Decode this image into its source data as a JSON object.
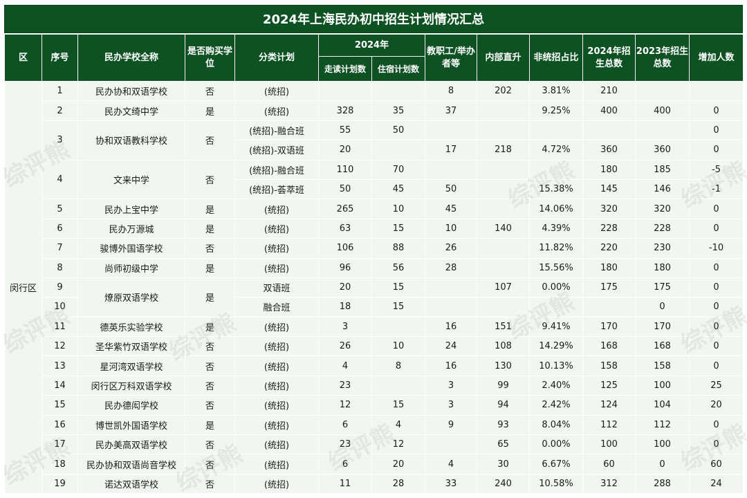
{
  "title": "2024年上海民办初中招生计划情况汇总",
  "headers": {
    "district": "区",
    "seq": "序号",
    "school": "民办学校全称",
    "buy_seat": "是否购买学位",
    "category": "分类计划",
    "year2024": "2024年",
    "day_plan": "走读计划数",
    "board_plan": "住宿计划数",
    "staff": "教职工/举办者等",
    "internal": "内部直升",
    "non_unified": "非统招占比",
    "total2024": "2024年招生总数",
    "total2023": "2023年招生总数",
    "increase": "增加人数"
  },
  "district": "闵行区",
  "watermark": "综评熊",
  "rows": [
    {
      "seq": "1",
      "school": "民办协和双语学校",
      "buy": "否",
      "cat": "(统招)",
      "day": "",
      "board": "",
      "staff": "8",
      "internal": "202",
      "ratio": "3.81%",
      "t2024": "210",
      "t2023": "",
      "inc": ""
    },
    {
      "seq": "2",
      "school": "民办文绮中学",
      "buy": "是",
      "cat": "(统招)",
      "day": "328",
      "board": "35",
      "staff": "37",
      "internal": "",
      "ratio": "9.25%",
      "t2024": "400",
      "t2023": "400",
      "inc": "0"
    },
    {
      "seq": "3",
      "school": "协和双语教科学校",
      "buy": "否",
      "cat": "(统招)-融合班",
      "day": "55",
      "board": "50",
      "staff": "",
      "internal": "",
      "ratio": "",
      "t2024": "",
      "t2023": "",
      "inc": "0"
    },
    {
      "seq": "",
      "school": "",
      "buy": "",
      "cat": "(统招)-双语班",
      "day": "20",
      "board": "",
      "staff": "17",
      "internal": "218",
      "ratio": "4.72%",
      "t2024": "360",
      "t2023": "360",
      "inc": "0"
    },
    {
      "seq": "4",
      "school": "文来中学",
      "buy": "否",
      "cat": "(统招)-融合班",
      "day": "110",
      "board": "70",
      "staff": "",
      "internal": "",
      "ratio": "",
      "t2024": "180",
      "t2023": "185",
      "inc": "-5"
    },
    {
      "seq": "",
      "school": "",
      "buy": "",
      "cat": "(统招)-荟萃班",
      "day": "50",
      "board": "45",
      "staff": "50",
      "internal": "",
      "ratio": "15.38%",
      "t2024": "145",
      "t2023": "146",
      "inc": "-1"
    },
    {
      "seq": "5",
      "school": "民办上宝中学",
      "buy": "是",
      "cat": "(统招)",
      "day": "265",
      "board": "10",
      "staff": "45",
      "internal": "",
      "ratio": "14.06%",
      "t2024": "320",
      "t2023": "320",
      "inc": "0"
    },
    {
      "seq": "6",
      "school": "民办万源城",
      "buy": "是",
      "cat": "(统招)",
      "day": "63",
      "board": "15",
      "staff": "10",
      "internal": "140",
      "ratio": "4.39%",
      "t2024": "228",
      "t2023": "228",
      "inc": "0"
    },
    {
      "seq": "7",
      "school": "骏博外国语学校",
      "buy": "否",
      "cat": "(统招)",
      "day": "106",
      "board": "88",
      "staff": "26",
      "internal": "",
      "ratio": "11.82%",
      "t2024": "220",
      "t2023": "230",
      "inc": "-10"
    },
    {
      "seq": "8",
      "school": "尚师初级中学",
      "buy": "是",
      "cat": "(统招)",
      "day": "96",
      "board": "56",
      "staff": "28",
      "internal": "",
      "ratio": "15.56%",
      "t2024": "180",
      "t2023": "180",
      "inc": "0"
    },
    {
      "seq": "9",
      "school": "燎原双语学校",
      "buy": "是",
      "cat": "双语班",
      "day": "20",
      "board": "15",
      "staff": "",
      "internal": "107",
      "ratio": "0.00%",
      "t2024": "175",
      "t2023": "175",
      "inc": "0"
    },
    {
      "seq": "10",
      "school": "",
      "buy": "",
      "cat": "融合班",
      "day": "18",
      "board": "15",
      "staff": "",
      "internal": "",
      "ratio": "",
      "t2024": "",
      "t2023": "0",
      "inc": "0"
    },
    {
      "seq": "11",
      "school": "德英乐实验学校",
      "buy": "是",
      "cat": "(统招)",
      "day": "3",
      "board": "",
      "staff": "16",
      "internal": "151",
      "ratio": "9.41%",
      "t2024": "170",
      "t2023": "170",
      "inc": "0"
    },
    {
      "seq": "12",
      "school": "圣华紫竹双语学校",
      "buy": "否",
      "cat": "(统招)",
      "day": "26",
      "board": "10",
      "staff": "24",
      "internal": "108",
      "ratio": "14.29%",
      "t2024": "168",
      "t2023": "168",
      "inc": "0"
    },
    {
      "seq": "13",
      "school": "星河湾双语学校",
      "buy": "否",
      "cat": "(统招)",
      "day": "4",
      "board": "8",
      "staff": "16",
      "internal": "130",
      "ratio": "10.13%",
      "t2024": "158",
      "t2023": "158",
      "inc": "0"
    },
    {
      "seq": "14",
      "school": "闵行区万科双语学校",
      "buy": "否",
      "cat": "(统招)",
      "day": "23",
      "board": "",
      "staff": "3",
      "internal": "99",
      "ratio": "2.40%",
      "t2024": "125",
      "t2023": "100",
      "inc": "25"
    },
    {
      "seq": "15",
      "school": "民办德闳学校",
      "buy": "否",
      "cat": "(统招)",
      "day": "12",
      "board": "15",
      "staff": "3",
      "internal": "94",
      "ratio": "2.42%",
      "t2024": "124",
      "t2023": "104",
      "inc": "20"
    },
    {
      "seq": "16",
      "school": "博世凯外国语学校",
      "buy": "是",
      "cat": "(统招)",
      "day": "6",
      "board": "4",
      "staff": "9",
      "internal": "93",
      "ratio": "8.04%",
      "t2024": "112",
      "t2023": "112",
      "inc": "0"
    },
    {
      "seq": "17",
      "school": "民办美高双语学校",
      "buy": "否",
      "cat": "(统招)",
      "day": "23",
      "board": "12",
      "staff": "",
      "internal": "65",
      "ratio": "0.00%",
      "t2024": "100",
      "t2023": "100",
      "inc": "0"
    },
    {
      "seq": "18",
      "school": "民办协和双语尚音学校",
      "buy": "否",
      "cat": "(统招)",
      "day": "6",
      "board": "20",
      "staff": "4",
      "internal": "30",
      "ratio": "6.67%",
      "t2024": "60",
      "t2023": "0",
      "inc": "60"
    },
    {
      "seq": "19",
      "school": "诺达双语学校",
      "buy": "否",
      "cat": "(统招)",
      "day": "11",
      "board": "28",
      "staff": "33",
      "internal": "240",
      "ratio": "10.58%",
      "t2024": "312",
      "t2023": "288",
      "inc": "24"
    }
  ]
}
